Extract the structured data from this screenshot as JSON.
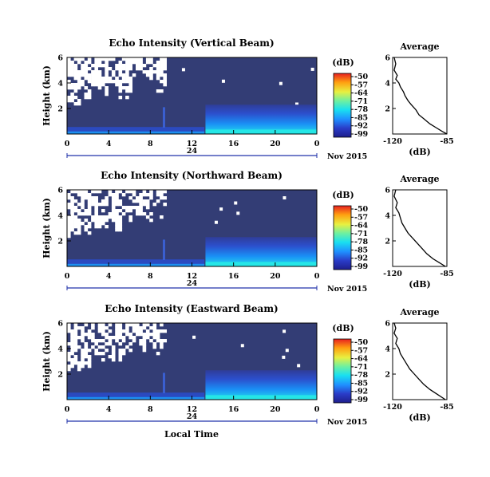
{
  "figure": {
    "x_axis_label": "Local Time",
    "date_label": "Nov 2015",
    "day_label": "24",
    "colorbar_unit": "(dB)",
    "average_title": "Average",
    "average_xlabel": "(dB)"
  },
  "chart_data": [
    {
      "type": "heatmap",
      "title": "Echo Intensity (Vertical Beam)",
      "xlabel": "",
      "ylabel": "Height (km)",
      "x_ticks": [
        "0",
        "4",
        "8",
        "12",
        "16",
        "20",
        "0"
      ],
      "y_ticks": [
        "2",
        "4",
        "6"
      ],
      "xlim_hours": [
        0,
        24
      ],
      "ylim_km": [
        0,
        6
      ],
      "colorbar": {
        "unit": "(dB)",
        "ticks": [
          "-50",
          "-57",
          "-64",
          "-71",
          "-78",
          "-85",
          "-92",
          "-99"
        ],
        "range": [
          -99,
          -50
        ]
      },
      "average_profile": {
        "title": "Average",
        "xlabel": "(dB)",
        "x_ticks": [
          "-120",
          "-85"
        ],
        "y_ticks": [
          "2",
          "4",
          "6"
        ],
        "xlim": [
          -120,
          -85
        ],
        "points": [
          [
            -119,
            6
          ],
          [
            -118,
            5.5
          ],
          [
            -119,
            5.0
          ],
          [
            -117,
            4.6
          ],
          [
            -118,
            4.3
          ],
          [
            -116,
            4.0
          ],
          [
            -115,
            3.7
          ],
          [
            -113,
            3.3
          ],
          [
            -112,
            3.0
          ],
          [
            -110,
            2.6
          ],
          [
            -108,
            2.3
          ],
          [
            -105,
            1.9
          ],
          [
            -103,
            1.5
          ],
          [
            -100,
            1.2
          ],
          [
            -96,
            0.8
          ],
          [
            -92,
            0.5
          ],
          [
            -88,
            0.2
          ],
          [
            -85,
            0.0
          ]
        ]
      }
    },
    {
      "type": "heatmap",
      "title": "Echo Intensity (Northward Beam)",
      "xlabel": "",
      "ylabel": "Height (km)",
      "x_ticks": [
        "0",
        "4",
        "8",
        "12",
        "16",
        "20",
        "0"
      ],
      "y_ticks": [
        "2",
        "4",
        "6"
      ],
      "xlim_hours": [
        0,
        24
      ],
      "ylim_km": [
        0,
        6
      ],
      "colorbar": {
        "unit": "(dB)",
        "ticks": [
          "-50",
          "-57",
          "-64",
          "-71",
          "-78",
          "-85",
          "-92",
          "-99"
        ],
        "range": [
          -99,
          -50
        ]
      },
      "average_profile": {
        "title": "Average",
        "xlabel": "(dB)",
        "x_ticks": [
          "-120",
          "-85"
        ],
        "y_ticks": [
          "2",
          "4",
          "6"
        ],
        "xlim": [
          -120,
          -85
        ],
        "points": [
          [
            -118,
            6
          ],
          [
            -119,
            5.5
          ],
          [
            -117,
            5.0
          ],
          [
            -118,
            4.6
          ],
          [
            -116,
            4.2
          ],
          [
            -115,
            3.8
          ],
          [
            -114,
            3.4
          ],
          [
            -112,
            3.0
          ],
          [
            -110,
            2.6
          ],
          [
            -107,
            2.2
          ],
          [
            -104,
            1.8
          ],
          [
            -101,
            1.4
          ],
          [
            -98,
            1.0
          ],
          [
            -94,
            0.6
          ],
          [
            -90,
            0.3
          ],
          [
            -86,
            0.0
          ]
        ]
      }
    },
    {
      "type": "heatmap",
      "title": "Echo Intensity (Eastward Beam)",
      "xlabel": "Local Time",
      "ylabel": "Height (km)",
      "x_ticks": [
        "0",
        "4",
        "8",
        "12",
        "16",
        "20",
        "0"
      ],
      "y_ticks": [
        "2",
        "4",
        "6"
      ],
      "xlim_hours": [
        0,
        24
      ],
      "ylim_km": [
        0,
        6
      ],
      "colorbar": {
        "unit": "(dB)",
        "ticks": [
          "-50",
          "-57",
          "-64",
          "-71",
          "-78",
          "-85",
          "-92",
          "-99"
        ],
        "range": [
          -99,
          -50
        ]
      },
      "average_profile": {
        "title": "Average",
        "xlabel": "(dB)",
        "x_ticks": [
          "-120",
          "-85"
        ],
        "y_ticks": [
          "2",
          "4",
          "6"
        ],
        "xlim": [
          -120,
          -85
        ],
        "points": [
          [
            -119,
            6
          ],
          [
            -118,
            5.6
          ],
          [
            -119,
            5.2
          ],
          [
            -117,
            4.8
          ],
          [
            -118,
            4.4
          ],
          [
            -116,
            4.0
          ],
          [
            -115,
            3.6
          ],
          [
            -113,
            3.2
          ],
          [
            -111,
            2.8
          ],
          [
            -109,
            2.4
          ],
          [
            -106,
            2.0
          ],
          [
            -103,
            1.6
          ],
          [
            -100,
            1.2
          ],
          [
            -96,
            0.8
          ],
          [
            -91,
            0.4
          ],
          [
            -86,
            0.0
          ]
        ]
      }
    }
  ]
}
